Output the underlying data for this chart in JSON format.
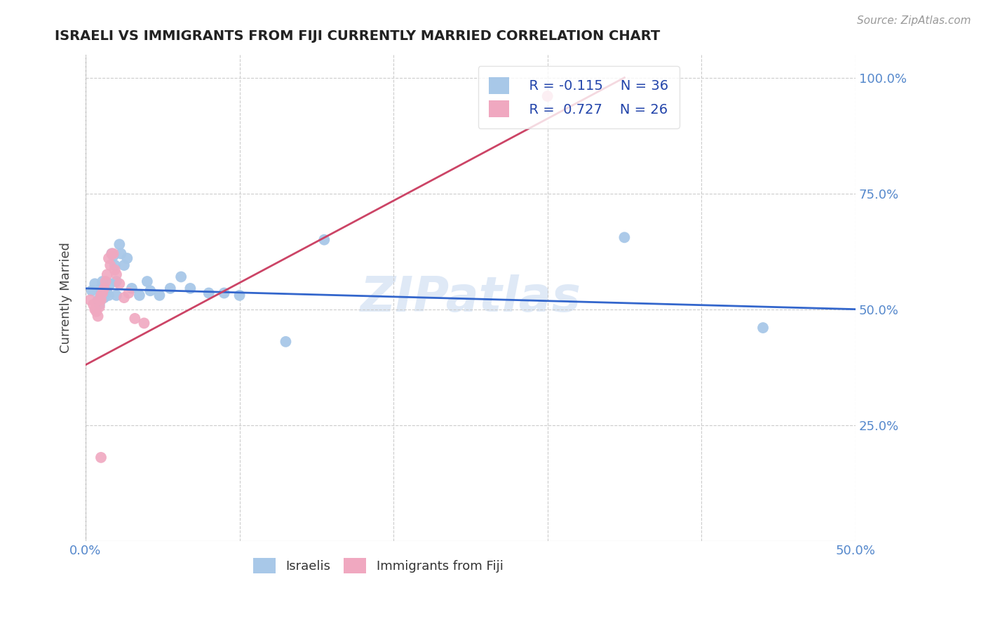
{
  "title": "ISRAELI VS IMMIGRANTS FROM FIJI CURRENTLY MARRIED CORRELATION CHART",
  "source": "Source: ZipAtlas.com",
  "ylabel": "Currently Married",
  "xlim": [
    0.0,
    0.5
  ],
  "ylim": [
    0.0,
    1.05
  ],
  "yticks": [
    0.25,
    0.5,
    0.75,
    1.0
  ],
  "ytick_labels": [
    "25.0%",
    "50.0%",
    "75.0%",
    "100.0%"
  ],
  "xticks": [
    0.0,
    0.1,
    0.2,
    0.3,
    0.4,
    0.5
  ],
  "xtick_labels": [
    "0.0%",
    "",
    "",
    "",
    "",
    "50.0%"
  ],
  "legend_r1": "R = -0.115",
  "legend_n1": "N = 36",
  "legend_r2": "R =  0.727",
  "legend_n2": "N = 26",
  "israelis_color": "#a8c8e8",
  "fiji_color": "#f0a8c0",
  "trendline_israeli_color": "#3366cc",
  "trendline_fiji_color": "#cc4466",
  "watermark": "ZIPatlas",
  "isr_trendline_x0": 0.0,
  "isr_trendline_y0": 0.545,
  "isr_trendline_x1": 0.5,
  "isr_trendline_y1": 0.5,
  "fiji_trendline_x0": 0.0,
  "fiji_trendline_y0": 0.38,
  "fiji_trendline_x1": 0.35,
  "fiji_trendline_y1": 1.0,
  "israelis_x": [
    0.004,
    0.006,
    0.008,
    0.009,
    0.01,
    0.01,
    0.011,
    0.012,
    0.013,
    0.014,
    0.015,
    0.016,
    0.017,
    0.018,
    0.019,
    0.02,
    0.02,
    0.022,
    0.023,
    0.025,
    0.027,
    0.03,
    0.035,
    0.04,
    0.042,
    0.048,
    0.055,
    0.062,
    0.068,
    0.08,
    0.09,
    0.1,
    0.13,
    0.155,
    0.35,
    0.44
  ],
  "israelis_y": [
    0.54,
    0.555,
    0.52,
    0.51,
    0.53,
    0.545,
    0.56,
    0.525,
    0.54,
    0.535,
    0.53,
    0.555,
    0.62,
    0.615,
    0.595,
    0.53,
    0.56,
    0.64,
    0.62,
    0.595,
    0.61,
    0.545,
    0.53,
    0.56,
    0.54,
    0.53,
    0.545,
    0.57,
    0.545,
    0.535,
    0.535,
    0.53,
    0.43,
    0.65,
    0.655,
    0.46
  ],
  "fiji_x": [
    0.003,
    0.005,
    0.006,
    0.007,
    0.008,
    0.009,
    0.009,
    0.01,
    0.01,
    0.011,
    0.012,
    0.013,
    0.014,
    0.015,
    0.016,
    0.017,
    0.018,
    0.019,
    0.02,
    0.022,
    0.025,
    0.028,
    0.032,
    0.038,
    0.01,
    0.3
  ],
  "fiji_y": [
    0.52,
    0.51,
    0.5,
    0.495,
    0.485,
    0.505,
    0.52,
    0.53,
    0.52,
    0.535,
    0.545,
    0.56,
    0.575,
    0.61,
    0.595,
    0.62,
    0.62,
    0.585,
    0.575,
    0.555,
    0.525,
    0.535,
    0.48,
    0.47,
    0.18,
    0.96
  ]
}
